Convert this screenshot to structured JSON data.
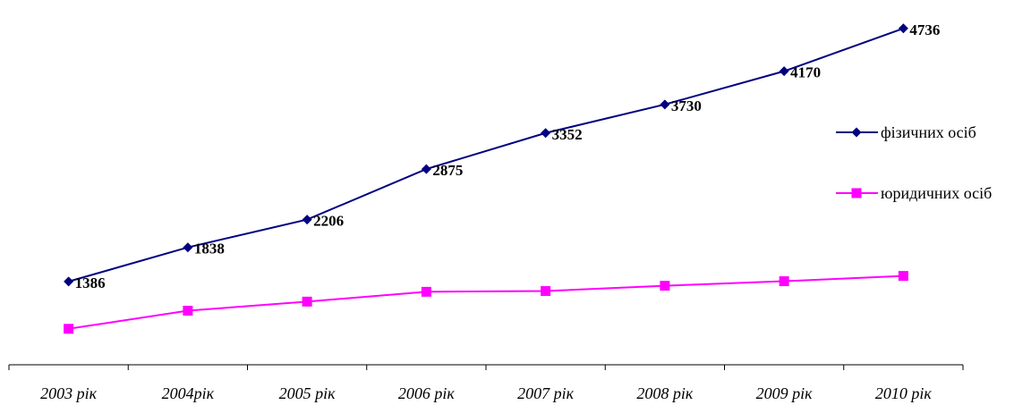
{
  "chart_data": {
    "type": "line",
    "categories": [
      "2003 рік",
      "2004рік",
      "2005 рік",
      "2006 рік",
      "2007 рік",
      "2008 рік",
      "2009 рік",
      "2010 рік"
    ],
    "series": [
      {
        "name": "фізичних осіб",
        "values": [
          1386,
          1838,
          2206,
          2875,
          3352,
          3730,
          4170,
          4736
        ],
        "data_labels": [
          "1386",
          "1838",
          "2206",
          "2875",
          "3352",
          "3730",
          "4170",
          "4736"
        ],
        "color": "#000080",
        "marker": "diamond"
      },
      {
        "name": "юридичних осіб",
        "values": [
          760,
          1000,
          1120,
          1250,
          1260,
          1330,
          1390,
          1460
        ],
        "color": "#FF00FF",
        "marker": "square"
      }
    ],
    "ylim": [
      0,
      4900
    ],
    "grid": false,
    "legend": "right"
  }
}
